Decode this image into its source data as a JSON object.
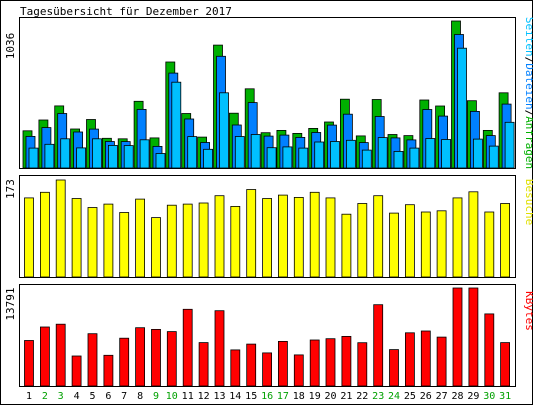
{
  "chart_data": {
    "type": "bar",
    "title": "Tagesübersicht für Dezember 2017",
    "categories": [
      "1",
      "2",
      "3",
      "4",
      "5",
      "6",
      "7",
      "8",
      "9",
      "10",
      "11",
      "12",
      "13",
      "14",
      "15",
      "16",
      "17",
      "18",
      "19",
      "20",
      "21",
      "22",
      "23",
      "24",
      "25",
      "26",
      "27",
      "28",
      "29",
      "30",
      "31"
    ],
    "weekend_days": [
      "2",
      "3",
      "9",
      "10",
      "16",
      "17",
      "23",
      "24",
      "30",
      "31"
    ],
    "panels": [
      {
        "id": "requests",
        "axis_max_label": "1036",
        "legend": {
          "seiten": "Seiten",
          "sep1": "/",
          "dateien": "Dateien",
          "sep2": "/",
          "anfragen": "Anfragen"
        },
        "ylim": [
          0,
          1036
        ],
        "series": [
          {
            "name": "Anfragen",
            "color": "#00b000",
            "values": [
              262,
              338,
              438,
              275,
              342,
              209,
              206,
              470,
              212,
              747,
              384,
              218,
              866,
              386,
              558,
              249,
              265,
              244,
              279,
              324,
              485,
              226,
              483,
              236,
              228,
              479,
              437,
              1036,
              474,
              265,
              530
            ]
          },
          {
            "name": "Dateien",
            "color": "#0080ff",
            "values": [
              223,
              285,
              384,
              254,
              274,
              187,
              186,
              413,
              152,
              669,
              345,
              180,
              787,
              303,
              461,
              225,
              232,
              216,
              250,
              302,
              379,
              179,
              363,
              212,
              198,
              412,
              366,
              941,
              399,
              228,
              450
            ]
          },
          {
            "name": "Seiten",
            "color": "#00c0ff",
            "values": [
              140,
              167,
              206,
              142,
              206,
              159,
              158,
              199,
              102,
              605,
              221,
              132,
              530,
              222,
              236,
              143,
              149,
              140,
              183,
              187,
              195,
              126,
              214,
              117,
              140,
              208,
              201,
              844,
              204,
              154,
              322
            ]
          }
        ]
      },
      {
        "id": "visits",
        "axis_max_label": "173",
        "legend": {
          "besuche": "Besuche"
        },
        "ylim": [
          0,
          173
        ],
        "series": [
          {
            "name": "Besuche",
            "color": "#ffff00",
            "values": [
              141,
              151,
              173,
              140,
              124,
              130,
              115,
              139,
              106,
              128,
              130,
              132,
              145,
              126,
              156,
              140,
              146,
              142,
              151,
              141,
              112,
              131,
              145,
              114,
              129,
              116,
              118,
              141,
              152,
              116,
              131
            ]
          }
        ]
      },
      {
        "id": "kbytes",
        "axis_max_label": "13791",
        "legend": {
          "kbytes": "KBytes"
        },
        "ylim": [
          0,
          13791
        ],
        "series": [
          {
            "name": "KBytes",
            "color": "#ff0000",
            "values": [
              6410,
              8300,
              8700,
              4220,
              7360,
              4320,
              6730,
              8210,
              7970,
              7660,
              10790,
              6110,
              10600,
              5080,
              5890,
              4660,
              6280,
              4370,
              6470,
              6650,
              6980,
              6090,
              11440,
              5120,
              7490,
              7740,
              6880,
              13791,
              13791,
              10150,
              6110
            ]
          }
        ]
      }
    ],
    "legend_placement": "right",
    "grid": false
  }
}
